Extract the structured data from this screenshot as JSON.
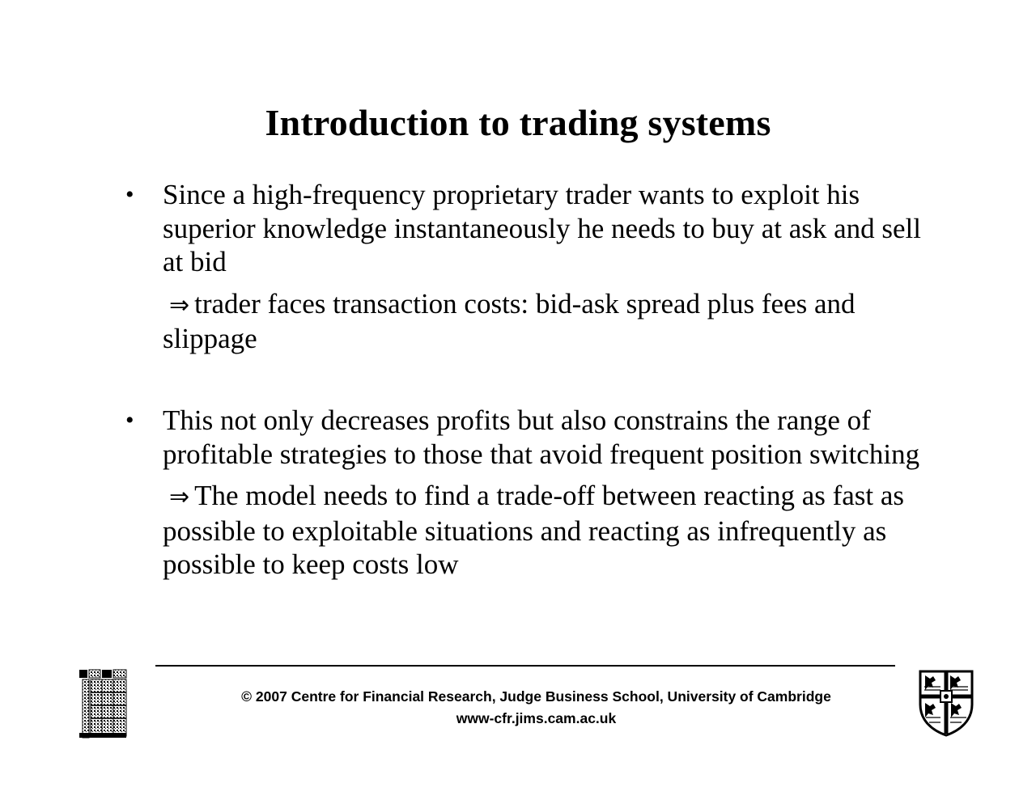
{
  "slide": {
    "title": "Introduction to trading systems"
  },
  "bullets": [
    {
      "marker": "•",
      "text": "Since a high-frequency proprietary trader wants to exploit his superior knowledge instantaneously he needs to buy at ask and sell at bid",
      "implication_arrow": "⇒",
      "implication": "trader faces transaction costs: bid-ask spread plus fees and slippage"
    },
    {
      "marker": "•",
      "text": "This not only decreases profits but also constrains the range of profitable strategies to those that avoid frequent position switching",
      "implication_arrow": "⇒",
      "implication": "The model needs to find a trade-off between reacting as fast as possible to exploitable situations and reacting as infrequently as possible to keep costs low"
    }
  ],
  "footer": {
    "copyright": "© 2007 Centre for Financial Research,  Judge Business School,  University of Cambridge",
    "url": "www-cfr.jims.cam.ac.uk"
  },
  "logos": {
    "left_icon": "judge-business-school-logo-icon",
    "right_icon": "university-of-cambridge-crest-icon"
  }
}
